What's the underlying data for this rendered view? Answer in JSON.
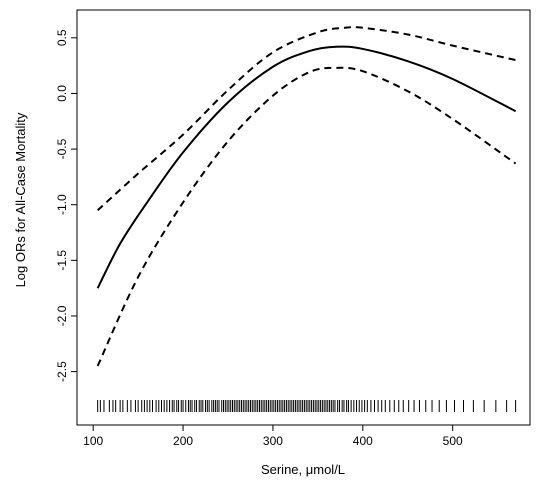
{
  "chart_data": {
    "type": "line",
    "title": "",
    "xlabel": "Serine, μmol/L",
    "ylabel": "Log ORs for All-Case Mortality",
    "xlim": [
      82,
      586
    ],
    "ylim": [
      -2.98,
      0.75
    ],
    "x_ticks": [
      {
        "value": 100,
        "label": "100"
      },
      {
        "value": 200,
        "label": "200"
      },
      {
        "value": 300,
        "label": "300"
      },
      {
        "value": 400,
        "label": "400"
      },
      {
        "value": 500,
        "label": "500"
      }
    ],
    "y_ticks": [
      {
        "value": 0.5,
        "label": "0.5"
      },
      {
        "value": 0.0,
        "label": "0.0"
      },
      {
        "value": -0.5,
        "label": "-0.5"
      },
      {
        "value": -1.0,
        "label": "-1.0"
      },
      {
        "value": -1.5,
        "label": "-1.5"
      },
      {
        "value": -2.0,
        "label": "-2.0"
      },
      {
        "value": -2.5,
        "label": "-2.5"
      }
    ],
    "grid": false,
    "series": [
      {
        "style": "solid",
        "x": [
          105,
          130,
          160,
          200,
          250,
          300,
          340,
          370,
          400,
          450,
          500,
          570
        ],
        "values": [
          -1.75,
          -1.35,
          -0.98,
          -0.53,
          -0.08,
          0.24,
          0.38,
          0.42,
          0.4,
          0.29,
          0.13,
          -0.16
        ]
      },
      {
        "style": "dashed",
        "x": [
          105,
          150,
          200,
          250,
          300,
          350,
          380,
          400,
          450,
          500,
          570
        ],
        "values": [
          -1.05,
          -0.72,
          -0.37,
          0.03,
          0.37,
          0.55,
          0.59,
          0.59,
          0.53,
          0.43,
          0.3
        ]
      },
      {
        "style": "dashed",
        "x": [
          105,
          150,
          200,
          250,
          300,
          340,
          370,
          400,
          450,
          500,
          570
        ],
        "values": [
          -2.45,
          -1.65,
          -0.98,
          -0.43,
          -0.02,
          0.19,
          0.23,
          0.2,
          0.02,
          -0.23,
          -0.63
        ]
      }
    ],
    "rug": [
      105,
      108,
      112,
      118,
      122,
      125,
      130,
      133,
      138,
      142,
      147,
      150,
      154,
      157,
      160,
      163,
      166,
      170,
      173,
      176,
      179,
      182,
      185,
      188,
      190,
      193,
      195,
      198,
      200,
      203,
      206,
      208,
      210,
      213,
      215,
      218,
      220,
      222,
      225,
      227,
      229,
      232,
      234,
      236,
      238,
      240,
      243,
      245,
      247,
      249,
      251,
      253,
      255,
      257,
      259,
      261,
      263,
      265,
      267,
      269,
      271,
      273,
      275,
      277,
      279,
      281,
      283,
      285,
      287,
      289,
      291,
      293,
      295,
      297,
      299,
      301,
      303,
      305,
      307,
      309,
      311,
      313,
      315,
      317,
      319,
      321,
      323,
      325,
      327,
      329,
      331,
      333,
      335,
      337,
      339,
      341,
      343,
      345,
      347,
      349,
      351,
      353,
      355,
      357,
      359,
      361,
      363,
      365,
      367,
      369,
      372,
      374,
      377,
      379,
      382,
      384,
      387,
      390,
      393,
      396,
      399,
      402,
      405,
      409,
      413,
      417,
      421,
      425,
      430,
      435,
      440,
      445,
      451,
      457,
      463,
      470,
      477,
      485,
      493,
      502,
      512,
      523,
      535,
      548,
      560,
      570
    ]
  }
}
